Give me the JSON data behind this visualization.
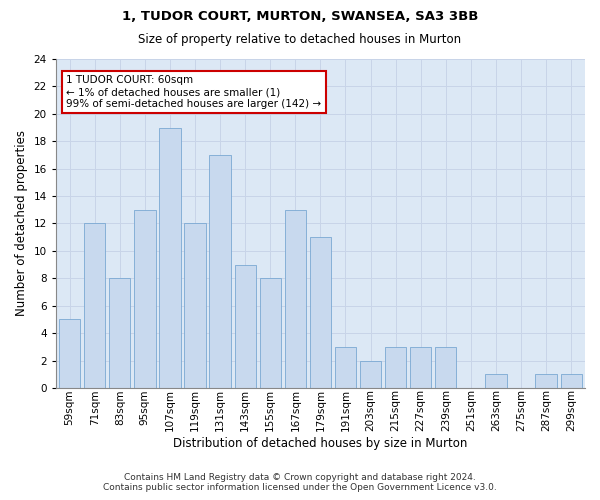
{
  "title1": "1, TUDOR COURT, MURTON, SWANSEA, SA3 3BB",
  "title2": "Size of property relative to detached houses in Murton",
  "xlabel": "Distribution of detached houses by size in Murton",
  "ylabel": "Number of detached properties",
  "categories": [
    "59sqm",
    "71sqm",
    "83sqm",
    "95sqm",
    "107sqm",
    "119sqm",
    "131sqm",
    "143sqm",
    "155sqm",
    "167sqm",
    "179sqm",
    "191sqm",
    "203sqm",
    "215sqm",
    "227sqm",
    "239sqm",
    "251sqm",
    "263sqm",
    "275sqm",
    "287sqm",
    "299sqm"
  ],
  "values": [
    5,
    12,
    8,
    13,
    19,
    12,
    17,
    9,
    8,
    13,
    11,
    3,
    2,
    3,
    3,
    3,
    0,
    1,
    0,
    1,
    1
  ],
  "bar_color": "#c8d9ee",
  "bar_edge_color": "#7aa8d2",
  "annotation_text": "1 TUDOR COURT: 60sqm\n← 1% of detached houses are smaller (1)\n99% of semi-detached houses are larger (142) →",
  "annotation_box_color": "#ffffff",
  "annotation_box_edge": "#cc0000",
  "ylim": [
    0,
    24
  ],
  "yticks": [
    0,
    2,
    4,
    6,
    8,
    10,
    12,
    14,
    16,
    18,
    20,
    22,
    24
  ],
  "grid_color": "#c8d4e8",
  "footer1": "Contains HM Land Registry data © Crown copyright and database right 2024.",
  "footer2": "Contains public sector information licensed under the Open Government Licence v3.0.",
  "bg_color": "#dce8f5",
  "title1_fontsize": 9.5,
  "title2_fontsize": 8.5,
  "xlabel_fontsize": 8.5,
  "ylabel_fontsize": 8.5,
  "tick_fontsize": 7.5,
  "annotation_fontsize": 7.5,
  "footer_fontsize": 6.5
}
